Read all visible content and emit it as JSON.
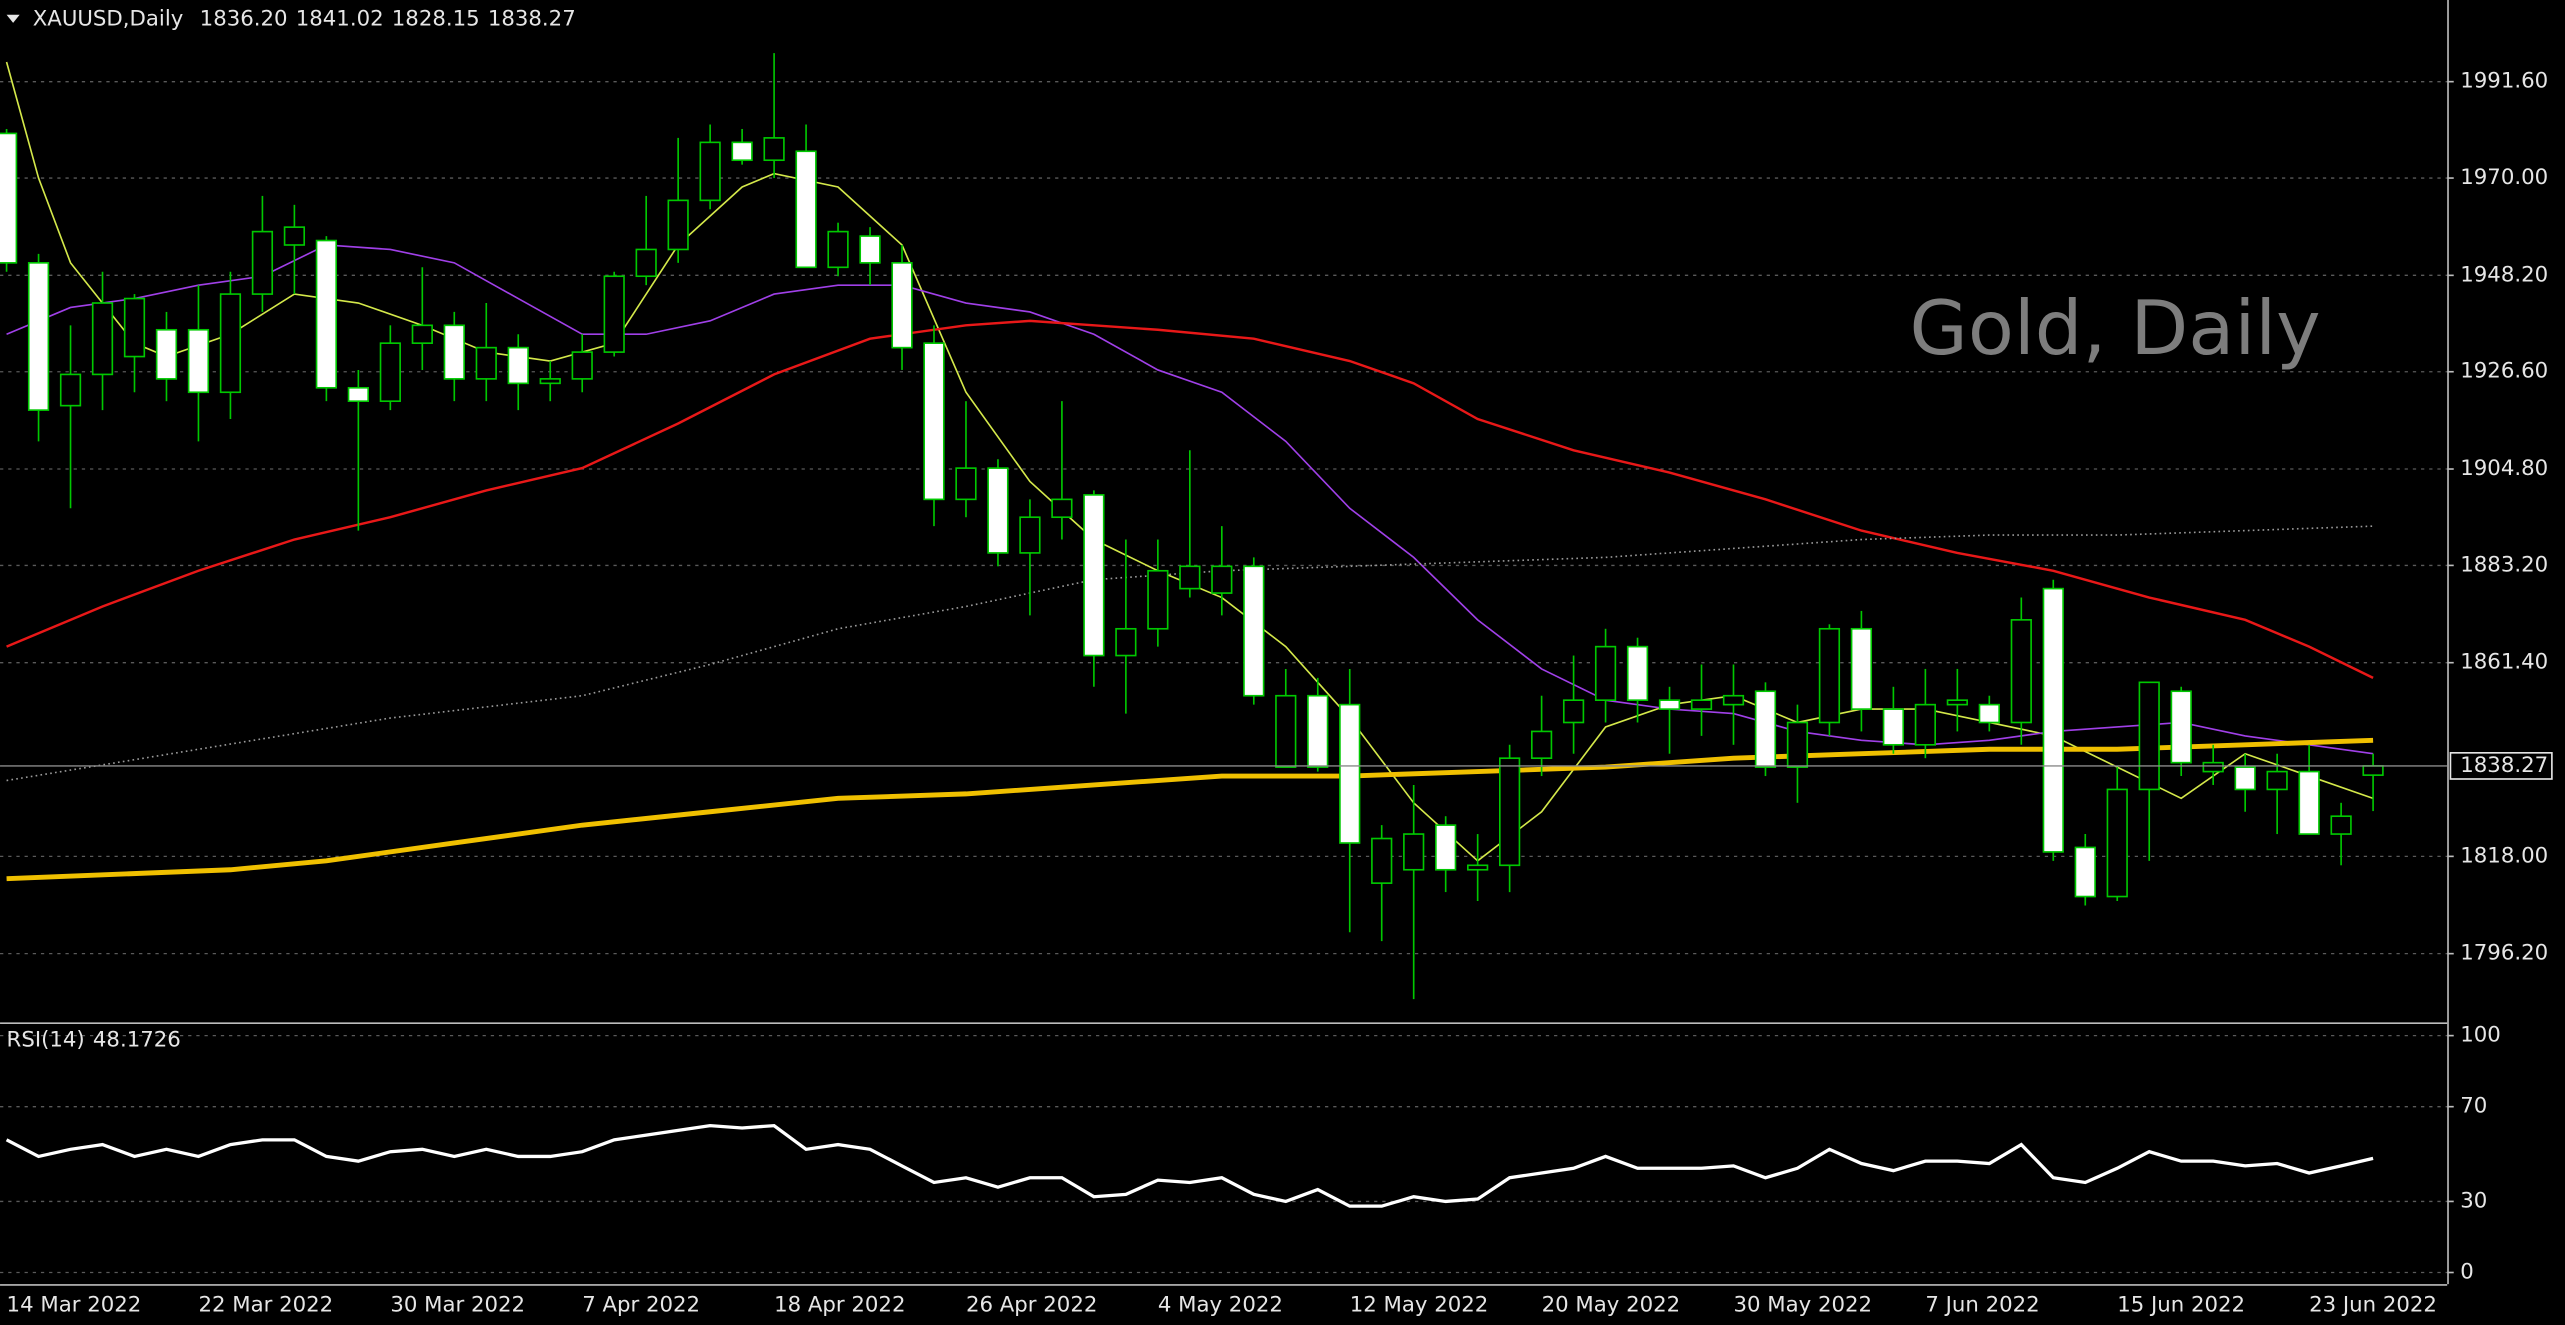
{
  "header": {
    "symbol": "XAUUSD,Daily",
    "ohlc": [
      {
        "value": 1836.2,
        "label": "1836.20"
      },
      1841.02,
      1828.15,
      1838.27
    ]
  },
  "watermark": "Gold, Daily",
  "chart_data": [
    {
      "type": "candlestick",
      "categories": [
        "14 Mar 2022",
        null,
        null,
        null,
        null,
        null,
        "22 Mar 2022",
        null,
        null,
        null,
        null,
        null,
        "30 Mar 2022",
        null,
        null,
        null,
        null,
        null,
        "7 Apr 2022",
        null,
        null,
        null,
        null,
        null,
        "18 Apr 2022",
        null,
        null,
        null,
        null,
        null,
        "26 Apr 2022",
        null,
        null,
        null,
        null,
        null,
        "4 May 2022",
        null,
        null,
        null,
        null,
        null,
        "12 May 2022",
        null,
        null,
        null,
        null,
        null,
        "20 May 2022",
        null,
        null,
        null,
        null,
        null,
        "30 May 2022",
        null,
        null,
        null,
        null,
        null,
        "7 Jun 2022",
        null,
        null,
        null,
        null,
        null,
        "15 Jun 2022",
        null,
        null,
        null,
        null,
        null,
        "23 Jun 2022",
        null,
        null
      ],
      "open": [
        1980,
        1951,
        1919,
        1926,
        1930,
        1936,
        1936,
        1922,
        1944,
        1955,
        1956,
        1923,
        1920,
        1933,
        1937,
        1925,
        1932,
        1924,
        1925,
        1931,
        1948,
        1954,
        1965,
        1978,
        1974,
        1976,
        1950,
        1957,
        1951,
        1933,
        1898,
        1905,
        1886,
        1894,
        1899,
        1863,
        1869,
        1878,
        1877,
        1883,
        1838,
        1854,
        1852,
        1812,
        1815,
        1825,
        1815,
        1816,
        1840,
        1848,
        1853,
        1865,
        1853,
        1851,
        1852,
        1855,
        1838,
        1848,
        1869,
        1851,
        1843,
        1852,
        1852,
        1848,
        1878,
        1820,
        1809,
        1833,
        1855,
        1837,
        1838,
        1833,
        1837,
        1823,
        1836.2
      ],
      "high": [
        1981,
        1953,
        1937,
        1949,
        1944,
        1940,
        1946,
        1949,
        1966,
        1964,
        1957,
        1927,
        1937,
        1950,
        1940,
        1942,
        1935,
        1929,
        1935,
        1949,
        1966,
        1979,
        1982,
        1981,
        1998,
        1982,
        1960,
        1959,
        1955,
        1937,
        1920,
        1907,
        1898,
        1920,
        1900,
        1889,
        1889,
        1909,
        1892,
        1885,
        1860,
        1858,
        1860,
        1825,
        1834,
        1827,
        1823,
        1843,
        1854,
        1863,
        1869,
        1867,
        1856,
        1861,
        1861,
        1857,
        1852,
        1870,
        1873,
        1856,
        1860,
        1860,
        1854,
        1876,
        1880,
        1823,
        1838,
        1857,
        1856,
        1843,
        1841,
        1841,
        1843,
        1830,
        1841.02
      ],
      "low": [
        1949,
        1911,
        1896,
        1918,
        1922,
        1920,
        1911,
        1916,
        1940,
        1944,
        1920,
        1891,
        1918,
        1927,
        1920,
        1920,
        1918,
        1920,
        1922,
        1930,
        1946,
        1951,
        1963,
        1973,
        1970,
        1950,
        1948,
        1946,
        1927,
        1892,
        1894,
        1883,
        1872,
        1889,
        1856,
        1850,
        1865,
        1876,
        1872,
        1852,
        1838,
        1837,
        1801,
        1799,
        1786,
        1810,
        1808,
        1810,
        1836,
        1841,
        1848,
        1848,
        1841,
        1845,
        1843,
        1836,
        1830,
        1845,
        1846,
        1841,
        1840,
        1846,
        1846,
        1843,
        1817,
        1807,
        1808,
        1817,
        1836,
        1834,
        1828,
        1823,
        1823,
        1816,
        1828.15
      ],
      "close": [
        1951,
        1918,
        1926,
        1942,
        1943,
        1925,
        1922,
        1944,
        1958,
        1959,
        1923,
        1920,
        1933,
        1937,
        1925,
        1932,
        1924,
        1925,
        1931,
        1948,
        1954,
        1965,
        1978,
        1974,
        1979,
        1950,
        1958,
        1951,
        1932,
        1898,
        1905,
        1886,
        1894,
        1898,
        1863,
        1869,
        1882,
        1883,
        1883,
        1854,
        1854,
        1838,
        1821,
        1822,
        1823,
        1815,
        1816,
        1840,
        1846,
        1853,
        1865,
        1853,
        1851,
        1853,
        1854,
        1838,
        1848,
        1869,
        1851,
        1843,
        1852,
        1853,
        1848,
        1871,
        1819,
        1809,
        1833,
        1857,
        1839,
        1839,
        1833,
        1837,
        1823,
        1827,
        1838.27
      ],
      "up_color": "#000000",
      "down_color": "#ffffff",
      "wick_color": "#00c800",
      "lines": [
        {
          "color": "#d4e84a",
          "width": 1,
          "style": "solid",
          "x": [
            0,
            1,
            2,
            4,
            5,
            7,
            9,
            11,
            13,
            15,
            17,
            19,
            21,
            23,
            24,
            26,
            28,
            30,
            32,
            34,
            36,
            38,
            40,
            42,
            44,
            46,
            48,
            50,
            52,
            54,
            56,
            58,
            60,
            62,
            64,
            66,
            68,
            70,
            72,
            74
          ],
          "values": [
            1996,
            1970,
            1951,
            1933,
            1930,
            1935,
            1944,
            1942,
            1937,
            1931,
            1929,
            1933,
            1955,
            1968,
            1971,
            1968,
            1955,
            1922,
            1902,
            1889,
            1882,
            1876,
            1865,
            1849,
            1830,
            1817,
            1828,
            1847,
            1852,
            1854,
            1848,
            1851,
            1851,
            1848,
            1845,
            1838,
            1831,
            1841,
            1836,
            1831
          ]
        },
        {
          "color": "#a040e8",
          "width": 1,
          "style": "solid",
          "x": [
            0,
            2,
            4,
            6,
            8,
            10,
            12,
            14,
            16,
            18,
            20,
            22,
            24,
            26,
            28,
            30,
            32,
            34,
            36,
            38,
            40,
            42,
            44,
            46,
            48,
            50,
            52,
            54,
            56,
            58,
            60,
            62,
            64,
            66,
            68,
            70,
            72,
            74
          ],
          "values": [
            1935,
            1941,
            1943,
            1946,
            1948,
            1955,
            1954,
            1951,
            1943,
            1935,
            1935,
            1938,
            1944,
            1946,
            1946,
            1942,
            1940,
            1935,
            1927,
            1922,
            1911,
            1896,
            1885,
            1871,
            1860,
            1853,
            1851,
            1850,
            1846,
            1844,
            1843,
            1844,
            1846,
            1847,
            1848,
            1845,
            1843,
            1841
          ]
        },
        {
          "color": "#e81818",
          "width": 1.5,
          "style": "solid",
          "x": [
            0,
            3,
            6,
            9,
            12,
            15,
            18,
            21,
            24,
            27,
            30,
            32,
            34,
            36,
            39,
            42,
            44,
            46,
            49,
            52,
            55,
            58,
            61,
            64,
            67,
            70,
            72,
            74
          ],
          "values": [
            1865,
            1874,
            1882,
            1889,
            1894,
            1900,
            1905,
            1915,
            1926,
            1934,
            1937,
            1938,
            1937,
            1936,
            1934,
            1929,
            1924,
            1916,
            1909,
            1904,
            1898,
            1891,
            1886,
            1882,
            1876,
            1871,
            1865,
            1858
          ]
        },
        {
          "color": "#f0c000",
          "width": 3,
          "style": "solid",
          "x": [
            0,
            7,
            10,
            14,
            18,
            22,
            26,
            30,
            34,
            38,
            42,
            46,
            50,
            54,
            58,
            62,
            66,
            70,
            74
          ],
          "values": [
            1813,
            1815,
            1817,
            1821,
            1825,
            1828,
            1831,
            1832,
            1834,
            1836,
            1836,
            1837,
            1838,
            1840,
            1841,
            1842,
            1842,
            1843,
            1844
          ]
        },
        {
          "color": "#9a9a9a",
          "width": 1,
          "style": "dotted",
          "x": [
            0,
            6,
            12,
            18,
            22,
            26,
            30,
            34,
            38,
            42,
            46,
            50,
            54,
            58,
            62,
            66,
            70,
            74
          ],
          "values": [
            1835,
            1842,
            1849,
            1854,
            1861,
            1869,
            1874,
            1880,
            1882,
            1883,
            1884,
            1885,
            1887,
            1889,
            1890,
            1890,
            1891,
            1892
          ]
        }
      ],
      "last_price": 1838.27,
      "ylim": [
        1780.8,
        2009.9
      ],
      "yticks": [
        {
          "value": 1991.6,
          "label": "1991.60"
        },
        {
          "value": 1970,
          "label": "1970.00"
        },
        {
          "value": 1948.2,
          "label": "1948.20"
        },
        {
          "value": 1926.6,
          "label": "1926.60"
        },
        {
          "value": 1904.8,
          "label": "1904.80"
        },
        {
          "value": 1883.2,
          "label": "1883.20"
        },
        {
          "value": 1861.4,
          "label": "1861.40"
        },
        {
          "value": 1818,
          "label": "1818.00"
        },
        {
          "value": 1796.2,
          "label": "1796.20"
        }
      ],
      "grid": true
    },
    {
      "type": "line",
      "title": "RSI(14)",
      "series": [
        {
          "color": "#ffffff",
          "values": [
            56,
            49,
            52,
            54,
            49,
            52,
            49,
            54,
            56,
            56,
            49,
            47,
            51,
            52,
            49,
            52,
            49,
            49,
            51,
            56,
            58,
            60,
            62,
            61,
            62,
            52,
            54,
            52,
            45,
            38,
            40,
            36,
            40,
            40,
            32,
            33,
            39,
            38,
            40,
            33,
            30,
            35,
            28,
            28,
            32,
            30,
            31,
            40,
            42,
            44,
            49,
            44,
            44,
            44,
            45,
            40,
            44,
            52,
            46,
            43,
            47,
            47,
            46,
            54,
            40,
            38,
            44,
            51,
            47,
            47,
            45,
            46,
            42,
            45,
            48.1726
          ]
        }
      ],
      "ylim": [
        -4.9,
        104.9
      ],
      "yticks": [
        0,
        30,
        70,
        100
      ],
      "grid": true
    }
  ]
}
